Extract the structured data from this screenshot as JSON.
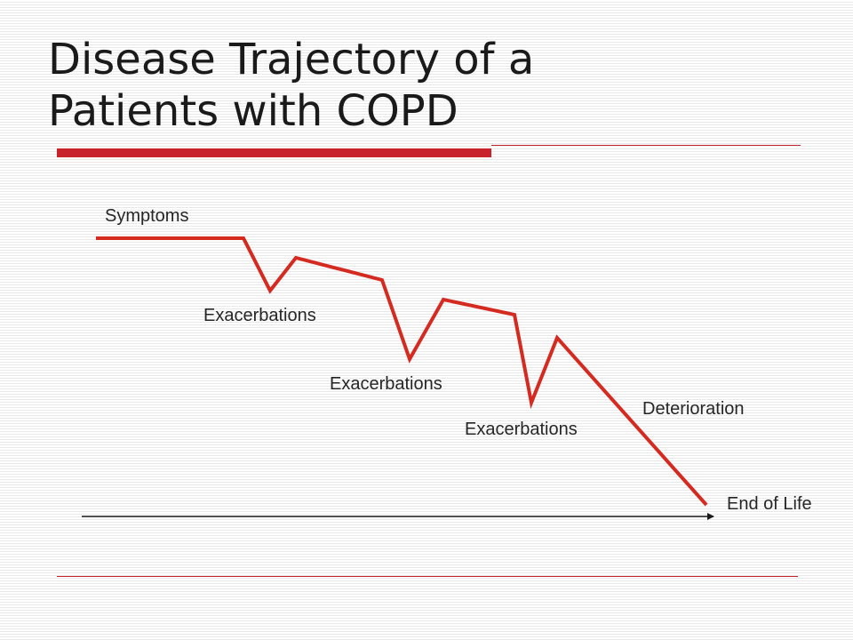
{
  "slide": {
    "title_line1": "Disease Trajectory of a",
    "title_line2": "Patients with COPD",
    "accent_color": "#c8232c",
    "text_color": "#1a1a1a"
  },
  "diagram": {
    "labels": {
      "symptoms": "Symptoms",
      "exacerbation_1": "Exacerbations",
      "exacerbation_2": "Exacerbations",
      "exacerbation_3": "Exacerbations",
      "deterioration": "Deterioration",
      "end_of_life": "End of Life"
    },
    "trajectory_color": "#d42a20",
    "time_axis_color": "#1a1a1a"
  }
}
